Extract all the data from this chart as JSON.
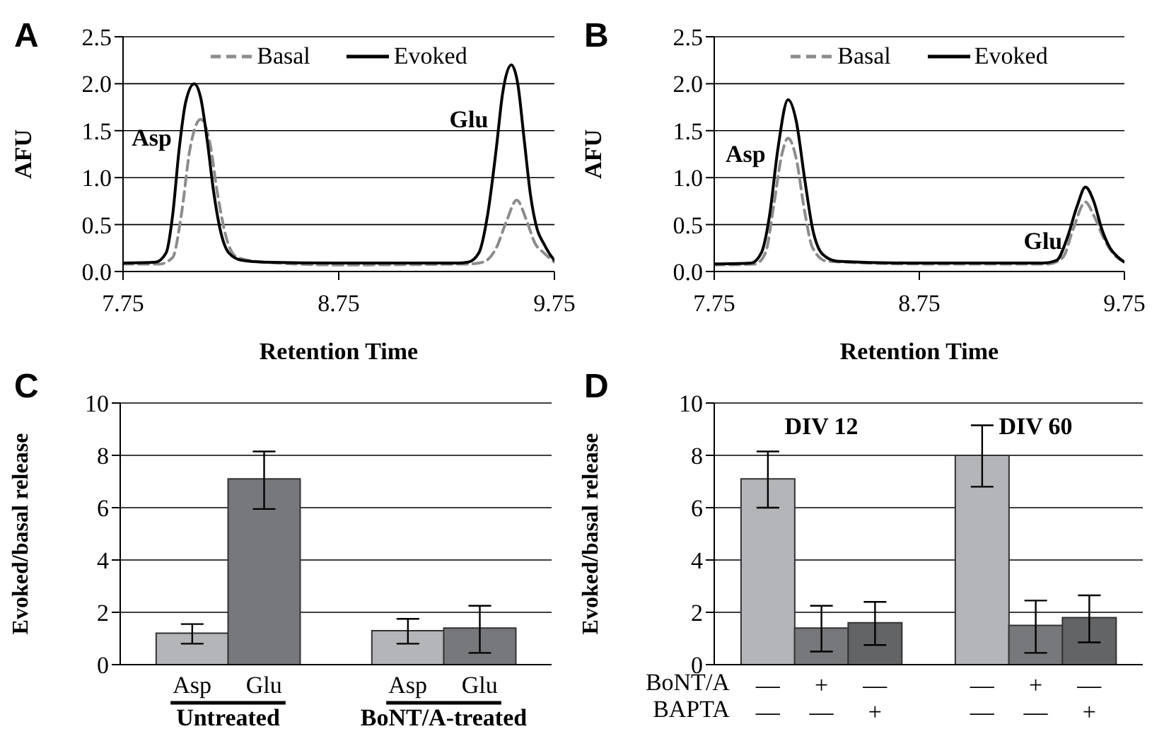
{
  "chart_data": [
    {
      "type": "line",
      "title": "A",
      "xlabel": "Retention Time",
      "ylabel": "AFU",
      "xlim": [
        7.75,
        9.75
      ],
      "xticks": [
        7.75,
        8.75,
        9.75
      ],
      "ylim": [
        0,
        2.5
      ],
      "yticks": [
        {
          "value": 0,
          "label": "0.0"
        },
        {
          "value": 0.5,
          "label": "0.5"
        },
        {
          "value": 1,
          "label": "1.0"
        },
        {
          "value": 1.5,
          "label": "1.5"
        },
        {
          "value": 2,
          "label": "2.0"
        },
        {
          "value": 2.5,
          "label": "2.5"
        }
      ],
      "grid": "y",
      "legend": "top",
      "marker": "none",
      "series": [
        {
          "name": "Basal",
          "color": "#8c8c8c",
          "line_style": "dashed",
          "x": [
            7.75,
            7.92,
            7.98,
            8.02,
            8.06,
            8.11,
            8.15,
            8.19,
            8.23,
            8.28,
            8.4,
            8.75,
            9.35,
            9.42,
            9.48,
            9.53,
            9.575,
            9.62,
            9.66,
            9.7,
            9.75
          ],
          "values": [
            0.08,
            0.08,
            0.15,
            0.6,
            1.3,
            1.62,
            1.4,
            0.8,
            0.35,
            0.15,
            0.1,
            0.07,
            0.08,
            0.1,
            0.25,
            0.55,
            0.76,
            0.55,
            0.3,
            0.2,
            0.1
          ]
        },
        {
          "name": "Evoked",
          "color": "#000000",
          "line_style": "solid",
          "x": [
            7.75,
            7.9,
            7.95,
            7.98,
            8.01,
            8.04,
            8.08,
            8.11,
            8.14,
            8.17,
            8.2,
            8.24,
            8.3,
            8.4,
            8.75,
            9.3,
            9.35,
            9.4,
            9.44,
            9.48,
            9.51,
            9.55,
            9.58,
            9.61,
            9.64,
            9.67,
            9.7,
            9.73,
            9.75
          ],
          "values": [
            0.09,
            0.1,
            0.2,
            0.6,
            1.3,
            1.8,
            2.0,
            1.85,
            1.4,
            0.85,
            0.45,
            0.2,
            0.12,
            0.1,
            0.09,
            0.09,
            0.1,
            0.2,
            0.6,
            1.3,
            1.9,
            2.2,
            2.0,
            1.4,
            0.8,
            0.45,
            0.3,
            0.18,
            0.12
          ]
        }
      ],
      "annotations": [
        "Asp",
        "Glu"
      ]
    },
    {
      "type": "line",
      "title": "B",
      "xlabel": "Retention Time",
      "ylabel": "AFU",
      "xlim": [
        7.75,
        9.75
      ],
      "xticks": [
        7.75,
        8.75,
        9.75
      ],
      "ylim": [
        0,
        2.5
      ],
      "yticks": [
        {
          "value": 0,
          "label": "0.0"
        },
        {
          "value": 0.5,
          "label": "0.5"
        },
        {
          "value": 1,
          "label": "1.0"
        },
        {
          "value": 1.5,
          "label": "1.5"
        },
        {
          "value": 2,
          "label": "2.0"
        },
        {
          "value": 2.5,
          "label": "2.5"
        }
      ],
      "grid": "y",
      "legend": "top",
      "marker": "none",
      "series": [
        {
          "name": "Basal",
          "color": "#8c8c8c",
          "line_style": "dashed",
          "x": [
            7.75,
            7.95,
            8.0,
            8.04,
            8.08,
            8.11,
            8.15,
            8.19,
            8.23,
            8.3,
            8.75,
            9.38,
            9.45,
            9.5,
            9.56,
            9.6,
            9.65,
            9.7,
            9.75
          ],
          "values": [
            0.07,
            0.08,
            0.2,
            0.7,
            1.25,
            1.42,
            1.2,
            0.65,
            0.25,
            0.11,
            0.08,
            0.08,
            0.15,
            0.45,
            0.74,
            0.6,
            0.35,
            0.18,
            0.1
          ]
        },
        {
          "name": "Evoked",
          "color": "#000000",
          "line_style": "solid",
          "x": [
            7.75,
            7.93,
            7.98,
            8.02,
            8.06,
            8.11,
            8.15,
            8.19,
            8.23,
            8.28,
            8.35,
            8.75,
            9.35,
            9.42,
            9.47,
            9.52,
            9.56,
            9.6,
            9.64,
            9.68,
            9.72,
            9.75
          ],
          "values": [
            0.08,
            0.09,
            0.2,
            0.6,
            1.3,
            1.83,
            1.6,
            1.0,
            0.45,
            0.18,
            0.11,
            0.09,
            0.09,
            0.12,
            0.35,
            0.7,
            0.9,
            0.75,
            0.45,
            0.25,
            0.15,
            0.1
          ]
        }
      ],
      "annotations": [
        "Asp",
        "Glu"
      ]
    },
    {
      "type": "bar",
      "title": "C",
      "ylabel": "Evoked/basal release",
      "categories": [
        "Asp",
        "Glu",
        null,
        "Asp",
        "Glu"
      ],
      "values": [
        1.2,
        7.1,
        null,
        1.3,
        1.4
      ],
      "colors": [
        "#b4b5b8",
        "#77787b",
        "#ffffff",
        "#b4b5b8",
        "#77787b"
      ],
      "errors": [
        [
          0.8,
          1.55
        ],
        [
          5.95,
          8.15
        ],
        null,
        [
          0.8,
          1.75
        ],
        [
          0.45,
          2.25
        ]
      ],
      "ylim": [
        0,
        10
      ],
      "yticks": [
        0,
        2,
        4,
        6,
        8,
        10
      ],
      "grid": "y",
      "annotations": [
        "Untreated",
        "BoNT/A-treated"
      ]
    },
    {
      "type": "bar",
      "title": "D",
      "ylabel": "Evoked/basal release",
      "categories": [
        "—\n—",
        "+\n—",
        "—\n+",
        null,
        "—\n—",
        "+\n—",
        "—\n+"
      ],
      "values": [
        7.1,
        1.4,
        1.6,
        null,
        8.0,
        1.5,
        1.8
      ],
      "colors": [
        "#b4b5b8",
        "#77787b",
        "#636466",
        "#ffffff",
        "#b4b5b8",
        "#77787b",
        "#636466"
      ],
      "errors": [
        [
          6.0,
          8.15
        ],
        [
          0.5,
          2.25
        ],
        [
          0.75,
          2.4
        ],
        null,
        [
          6.8,
          9.15
        ],
        [
          0.45,
          2.45
        ],
        [
          0.85,
          2.65
        ]
      ],
      "ylim": [
        0,
        10
      ],
      "yticks": [
        0,
        2,
        4,
        6,
        8,
        10
      ],
      "grid": "y",
      "annotations": [
        "DIV 12",
        "DIV 60",
        "BoNT/A",
        "BAPTA"
      ]
    }
  ]
}
